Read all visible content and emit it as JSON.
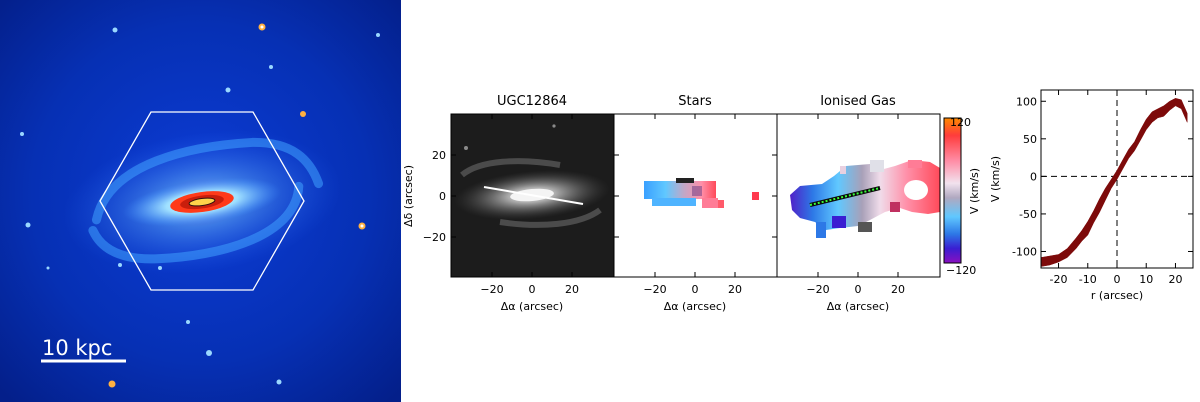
{
  "galaxy_image": {
    "scale_bar_label": "10 kpc"
  },
  "maps": {
    "panel_titles": [
      "UGC12864",
      "Stars",
      "Ionised Gas"
    ],
    "xlabel": "Δα (arcsec)",
    "ylabel": "Δδ (arcsec)",
    "x_ticks": [
      "−20",
      "0",
      "20"
    ],
    "y_ticks": [
      "20",
      "0",
      "−20"
    ],
    "colorbar": {
      "label": "V (km/s)",
      "max_label": "120",
      "min_label": "−120",
      "colors": [
        "#ff8a00",
        "#ff3c3c",
        "#ff8fa8",
        "#f2e2ee",
        "#b0a8c0",
        "#60c8ff",
        "#2d78e6",
        "#3a1ed2",
        "#8a10c0"
      ]
    }
  },
  "chart_data": {
    "type": "area",
    "xlabel": "r (arcsec)",
    "ylabel": "V (km/s)",
    "xlim": [
      -26,
      26
    ],
    "ylim": [
      -122,
      115
    ],
    "x_ticks": [
      -20,
      -10,
      0,
      10,
      20
    ],
    "y_ticks": [
      -100,
      -50,
      0,
      50,
      100
    ],
    "reference_lines": {
      "x": 0,
      "y": 0,
      "style": "dashed"
    },
    "band_color": "#7d0a0a",
    "series": [
      {
        "x": [
          -26,
          -23,
          -20,
          -17,
          -14,
          -12,
          -10,
          -8,
          -6,
          -4,
          -2,
          0,
          2,
          4,
          6,
          8,
          10,
          12,
          14,
          16,
          18,
          20,
          22,
          24
        ],
        "lower": [
          -120,
          -118,
          -114,
          -108,
          -96,
          -86,
          -78,
          -62,
          -48,
          -32,
          -16,
          -4,
          10,
          24,
          34,
          48,
          62,
          72,
          78,
          80,
          88,
          94,
          90,
          72
        ],
        "upper": [
          -108,
          -106,
          -104,
          -96,
          -82,
          -72,
          -60,
          -46,
          -30,
          -16,
          -4,
          8,
          22,
          36,
          46,
          62,
          76,
          86,
          90,
          94,
          100,
          104,
          102,
          84
        ]
      }
    ]
  }
}
